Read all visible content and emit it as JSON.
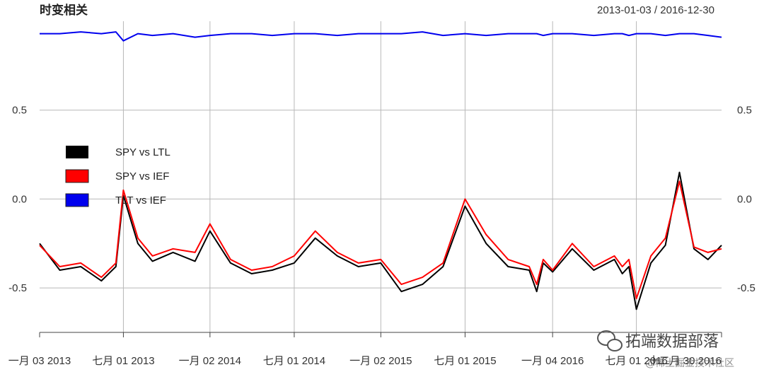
{
  "chart_data": {
    "type": "line",
    "title": "时变相关",
    "date_range": "2013-01-03 / 2016-12-30",
    "xlabel": "",
    "ylabel": "",
    "ylim": [
      -0.75,
      1.0
    ],
    "grid": true,
    "legend": "left",
    "x_ticks": [
      {
        "date": "2013-01-03",
        "label": "一月 03 2013"
      },
      {
        "date": "2013-07-01",
        "label": "七月 01 2013"
      },
      {
        "date": "2014-01-02",
        "label": "一月 02 2014"
      },
      {
        "date": "2014-07-01",
        "label": "七月 01 2014"
      },
      {
        "date": "2015-01-02",
        "label": "一月 02 2015"
      },
      {
        "date": "2015-07-01",
        "label": "七月 01 2015"
      },
      {
        "date": "2016-01-04",
        "label": "一月 04 2016"
      },
      {
        "date": "2016-07-01",
        "label": "七月 01 2016"
      },
      {
        "date": "2016-12-30",
        "label": "十二月 30 2016"
      }
    ],
    "y_ticks": [
      {
        "value": 0.5,
        "label": "0.5"
      },
      {
        "value": 0.0,
        "label": "0.0"
      },
      {
        "value": -0.5,
        "label": "-0.5"
      }
    ],
    "x": [
      "2013-01-03",
      "2013-02-15",
      "2013-04-01",
      "2013-05-15",
      "2013-06-15",
      "2013-07-01",
      "2013-08-01",
      "2013-09-01",
      "2013-10-15",
      "2013-12-01",
      "2014-01-02",
      "2014-02-15",
      "2014-04-01",
      "2014-05-15",
      "2014-07-01",
      "2014-08-15",
      "2014-10-01",
      "2014-11-15",
      "2015-01-02",
      "2015-02-15",
      "2015-04-01",
      "2015-05-15",
      "2015-07-01",
      "2015-08-15",
      "2015-10-01",
      "2015-11-15",
      "2015-12-01",
      "2015-12-15",
      "2016-01-04",
      "2016-02-15",
      "2016-04-01",
      "2016-05-15",
      "2016-06-01",
      "2016-06-15",
      "2016-07-01",
      "2016-08-01",
      "2016-09-01",
      "2016-10-01",
      "2016-11-01",
      "2016-12-01",
      "2016-12-30"
    ],
    "series": [
      {
        "name": "SPY vs LTL",
        "color": "#000000",
        "values": [
          -0.25,
          -0.4,
          -0.38,
          -0.46,
          -0.38,
          0.02,
          -0.25,
          -0.35,
          -0.3,
          -0.35,
          -0.18,
          -0.36,
          -0.42,
          -0.4,
          -0.36,
          -0.22,
          -0.32,
          -0.38,
          -0.36,
          -0.52,
          -0.48,
          -0.38,
          -0.04,
          -0.25,
          -0.38,
          -0.4,
          -0.52,
          -0.36,
          -0.41,
          -0.28,
          -0.4,
          -0.34,
          -0.42,
          -0.38,
          -0.62,
          -0.36,
          -0.26,
          0.15,
          -0.28,
          -0.34,
          -0.26
        ]
      },
      {
        "name": "SPY vs IEF",
        "color": "#ff0000",
        "values": [
          -0.26,
          -0.38,
          -0.36,
          -0.44,
          -0.36,
          0.05,
          -0.22,
          -0.32,
          -0.28,
          -0.3,
          -0.14,
          -0.34,
          -0.4,
          -0.38,
          -0.32,
          -0.18,
          -0.3,
          -0.36,
          -0.34,
          -0.48,
          -0.44,
          -0.36,
          0.0,
          -0.2,
          -0.34,
          -0.38,
          -0.48,
          -0.34,
          -0.4,
          -0.25,
          -0.38,
          -0.32,
          -0.38,
          -0.34,
          -0.56,
          -0.32,
          -0.22,
          0.1,
          -0.27,
          -0.3,
          -0.28
        ]
      },
      {
        "name": "TLT vs IEF",
        "color": "#0000ee",
        "values": [
          0.93,
          0.93,
          0.94,
          0.93,
          0.94,
          0.89,
          0.93,
          0.92,
          0.93,
          0.91,
          0.92,
          0.93,
          0.93,
          0.92,
          0.93,
          0.93,
          0.92,
          0.93,
          0.93,
          0.93,
          0.94,
          0.92,
          0.93,
          0.92,
          0.93,
          0.93,
          0.93,
          0.92,
          0.93,
          0.93,
          0.92,
          0.93,
          0.93,
          0.92,
          0.93,
          0.93,
          0.92,
          0.93,
          0.93,
          0.92,
          0.91
        ]
      }
    ]
  },
  "watermark": {
    "line1": "拓端数据部落",
    "line2": "@稀土掘金技术社区"
  },
  "colors": {
    "grid": "#b8b8b8",
    "axis": "#444444"
  }
}
